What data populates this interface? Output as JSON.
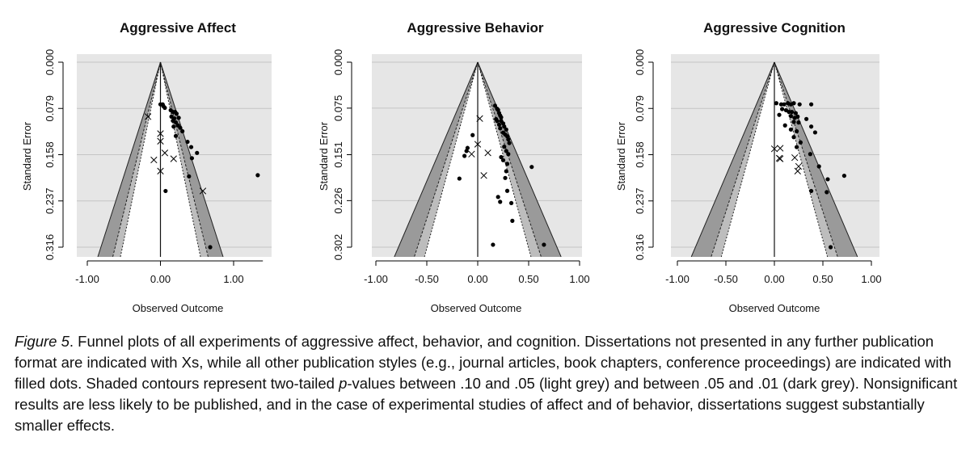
{
  "chart_data": [
    {
      "type": "scatter",
      "subtype": "funnel",
      "title": "Aggressive Affect",
      "xlabel": "Observed Outcome",
      "ylabel": "Standard Error",
      "xlim": [
        -1.0,
        1.0
      ],
      "x_ticks": [
        -1.0,
        0.0,
        1.0
      ],
      "x_tick_labels": [
        "-1.00",
        "0.00",
        "1.00"
      ],
      "ylim": [
        0.0,
        0.316
      ],
      "y_ticks": [
        0.0,
        0.079,
        0.158,
        0.237,
        0.316
      ],
      "y_tick_labels": [
        "0.000",
        "0.079",
        "0.158",
        "0.237",
        "0.316"
      ],
      "xaxis_max": 1.4,
      "dots": [
        [
          0.0,
          0.072
        ],
        [
          0.03,
          0.072
        ],
        [
          0.04,
          0.075
        ],
        [
          0.06,
          0.078
        ],
        [
          0.14,
          0.082
        ],
        [
          0.17,
          0.085
        ],
        [
          0.2,
          0.085
        ],
        [
          0.22,
          0.088
        ],
        [
          0.15,
          0.093
        ],
        [
          0.19,
          0.096
        ],
        [
          0.25,
          0.095
        ],
        [
          0.17,
          0.1
        ],
        [
          0.21,
          0.103
        ],
        [
          0.24,
          0.108
        ],
        [
          0.18,
          0.11
        ],
        [
          0.27,
          0.112
        ],
        [
          0.3,
          0.118
        ],
        [
          0.21,
          0.126
        ],
        [
          0.42,
          0.145
        ],
        [
          0.37,
          0.136
        ],
        [
          0.5,
          0.155
        ],
        [
          0.43,
          0.164
        ],
        [
          0.39,
          0.195
        ],
        [
          0.07,
          0.22
        ],
        [
          1.33,
          0.193
        ],
        [
          0.68,
          0.316
        ]
      ],
      "crosses": [
        [
          0.0,
          0.122
        ],
        [
          -0.17,
          0.093
        ],
        [
          0.0,
          0.135
        ],
        [
          0.06,
          0.155
        ],
        [
          0.18,
          0.165
        ],
        [
          -0.09,
          0.167
        ],
        [
          0.0,
          0.186
        ],
        [
          0.58,
          0.22
        ]
      ]
    },
    {
      "type": "scatter",
      "subtype": "funnel",
      "title": "Aggressive Behavior",
      "xlabel": "Observed Outcome",
      "ylabel": "Standard Error",
      "xlim": [
        -1.0,
        1.0
      ],
      "x_ticks": [
        -1.0,
        -0.5,
        0.0,
        0.5,
        1.0
      ],
      "x_tick_labels": [
        "-1.00",
        "-0.50",
        "0.00",
        "0.50",
        "1.00"
      ],
      "ylim": [
        0.0,
        0.302
      ],
      "y_ticks": [
        0.0,
        0.075,
        0.151,
        0.226,
        0.302
      ],
      "y_tick_labels": [
        "0.000",
        "0.075",
        "0.151",
        "0.226",
        "0.302"
      ],
      "xaxis_max": 1.0,
      "dots": [
        [
          0.17,
          0.071
        ],
        [
          0.19,
          0.076
        ],
        [
          0.2,
          0.078
        ],
        [
          0.21,
          0.083
        ],
        [
          0.22,
          0.087
        ],
        [
          0.23,
          0.09
        ],
        [
          0.18,
          0.093
        ],
        [
          0.19,
          0.096
        ],
        [
          0.23,
          0.096
        ],
        [
          0.25,
          0.1
        ],
        [
          0.21,
          0.102
        ],
        [
          0.26,
          0.105
        ],
        [
          0.22,
          0.108
        ],
        [
          0.28,
          0.11
        ],
        [
          0.25,
          0.115
        ],
        [
          0.27,
          0.118
        ],
        [
          0.29,
          0.121
        ],
        [
          0.3,
          0.126
        ],
        [
          0.31,
          0.132
        ],
        [
          0.26,
          0.138
        ],
        [
          0.28,
          0.145
        ],
        [
          0.3,
          0.15
        ],
        [
          0.23,
          0.155
        ],
        [
          0.25,
          0.16
        ],
        [
          0.29,
          0.166
        ],
        [
          0.53,
          0.171
        ],
        [
          0.28,
          0.178
        ],
        [
          0.27,
          0.189
        ],
        [
          0.29,
          0.21
        ],
        [
          0.2,
          0.22
        ],
        [
          0.22,
          0.228
        ],
        [
          0.33,
          0.23
        ],
        [
          0.34,
          0.259
        ],
        [
          0.15,
          0.298
        ],
        [
          0.65,
          0.298
        ],
        [
          -0.05,
          0.119
        ],
        [
          -0.1,
          0.14
        ],
        [
          -0.11,
          0.145
        ],
        [
          -0.13,
          0.153
        ],
        [
          -0.18,
          0.19
        ]
      ],
      "crosses": [
        [
          0.02,
          0.092
        ],
        [
          0.0,
          0.134
        ],
        [
          -0.06,
          0.15
        ],
        [
          0.1,
          0.148
        ],
        [
          0.06,
          0.185
        ]
      ]
    },
    {
      "type": "scatter",
      "subtype": "funnel",
      "title": "Aggressive Cognition",
      "xlabel": "Observed Outcome",
      "ylabel": "Standard Error",
      "xlim": [
        -1.0,
        1.0
      ],
      "x_ticks": [
        -1.0,
        -0.5,
        0.0,
        0.5,
        1.0
      ],
      "x_tick_labels": [
        "-1.00",
        "-0.50",
        "0.00",
        "0.50",
        "1.00"
      ],
      "ylim": [
        0.0,
        0.316
      ],
      "y_ticks": [
        0.0,
        0.079,
        0.158,
        0.237,
        0.316
      ],
      "y_tick_labels": [
        "0.000",
        "0.079",
        "0.158",
        "0.237",
        "0.316"
      ],
      "xaxis_max": 1.0,
      "dots": [
        [
          0.02,
          0.07
        ],
        [
          0.07,
          0.072
        ],
        [
          0.1,
          0.072
        ],
        [
          0.14,
          0.07
        ],
        [
          0.17,
          0.072
        ],
        [
          0.2,
          0.07
        ],
        [
          0.26,
          0.072
        ],
        [
          0.38,
          0.072
        ],
        [
          0.08,
          0.08
        ],
        [
          0.12,
          0.082
        ],
        [
          0.15,
          0.085
        ],
        [
          0.18,
          0.085
        ],
        [
          0.22,
          0.087
        ],
        [
          0.05,
          0.09
        ],
        [
          0.17,
          0.092
        ],
        [
          0.21,
          0.095
        ],
        [
          0.24,
          0.093
        ],
        [
          0.33,
          0.097
        ],
        [
          0.2,
          0.102
        ],
        [
          0.25,
          0.103
        ],
        [
          0.38,
          0.11
        ],
        [
          0.11,
          0.108
        ],
        [
          0.17,
          0.115
        ],
        [
          0.23,
          0.118
        ],
        [
          0.42,
          0.12
        ],
        [
          0.2,
          0.128
        ],
        [
          0.27,
          0.137
        ],
        [
          0.23,
          0.145
        ],
        [
          0.37,
          0.157
        ],
        [
          0.46,
          0.178
        ],
        [
          0.55,
          0.2
        ],
        [
          0.38,
          0.22
        ],
        [
          0.54,
          0.222
        ],
        [
          0.72,
          0.194
        ],
        [
          0.58,
          0.316
        ]
      ],
      "crosses": [
        [
          0.0,
          0.148
        ],
        [
          0.06,
          0.147
        ],
        [
          0.06,
          0.165
        ],
        [
          0.05,
          0.164
        ],
        [
          0.21,
          0.163
        ],
        [
          0.25,
          0.178
        ],
        [
          0.24,
          0.186
        ]
      ]
    }
  ],
  "caption": {
    "label": "Figure 5",
    "text": ". Funnel plots of all experiments of aggressive affect, behavior, and cognition. Dissertations not presented in any further publication format are indicated with Xs, while all other publication styles (e.g., journal articles, book chapters, conference proceedings) are indicated with filled dots. Shaded contours represent two-tailed ",
    "p_symbol": "p",
    "text_after_p": "-values between .10 and .05 (light grey) and between .05 and .01 (dark grey). Nonsignificant results are less likely to be published, and in the case of experimental studies of affect and of behavior, dissertations suggest substantially smaller effects."
  }
}
